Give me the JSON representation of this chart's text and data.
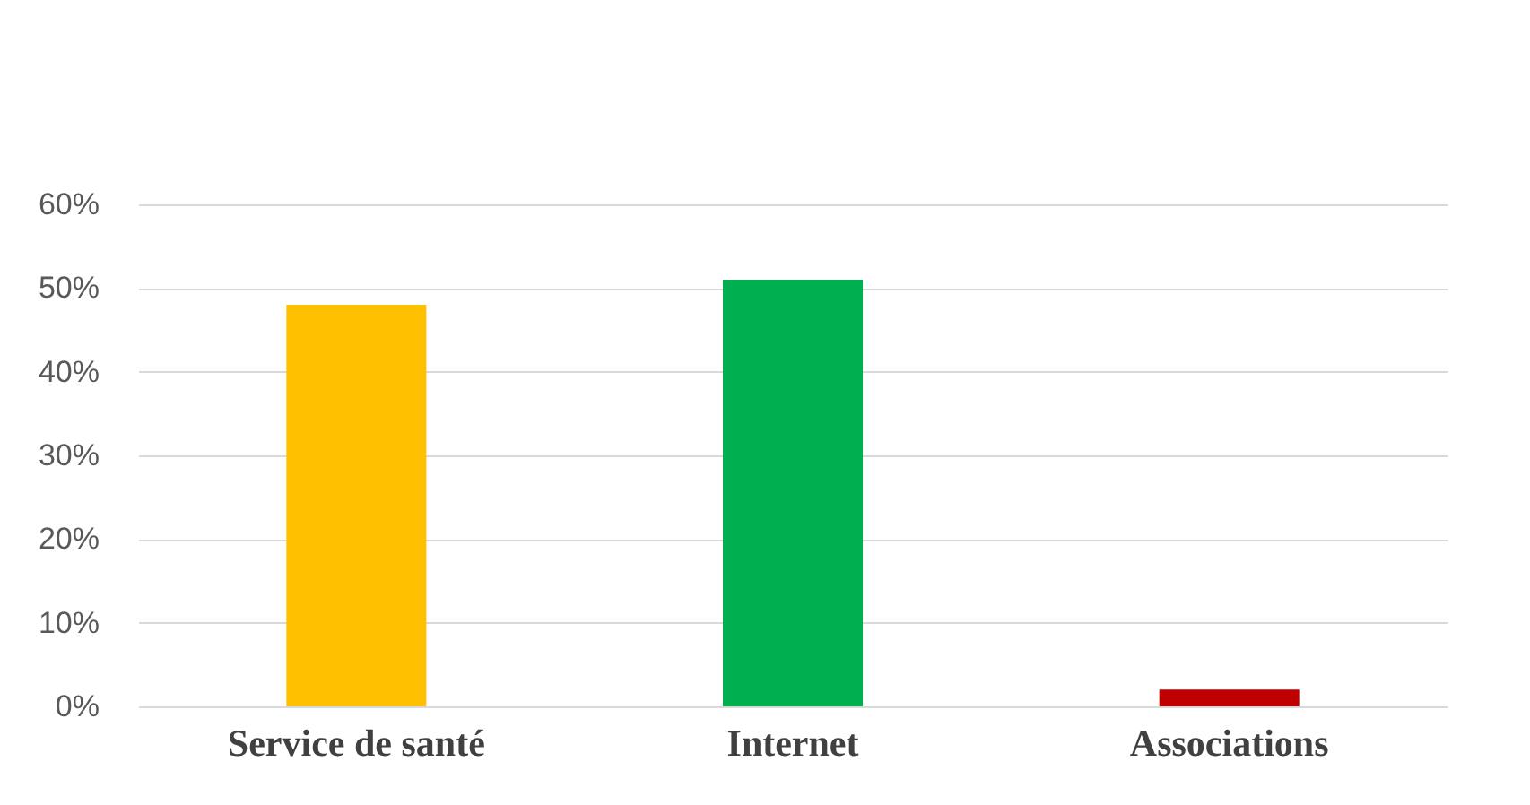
{
  "chart_data": {
    "type": "bar",
    "categories": [
      "Service de santé",
      "Internet",
      "Associations"
    ],
    "values": [
      48,
      51,
      2
    ],
    "colors": [
      "#ffc000",
      "#00b050",
      "#c00000"
    ],
    "ylim": [
      0,
      60
    ],
    "yticks": [
      {
        "value": 0,
        "label": "0%"
      },
      {
        "value": 10,
        "label": "10%"
      },
      {
        "value": 20,
        "label": "20%"
      },
      {
        "value": 30,
        "label": "30%"
      },
      {
        "value": 40,
        "label": "40%"
      },
      {
        "value": 50,
        "label": "50%"
      },
      {
        "value": 60,
        "label": "60%"
      }
    ],
    "grid": "y"
  }
}
